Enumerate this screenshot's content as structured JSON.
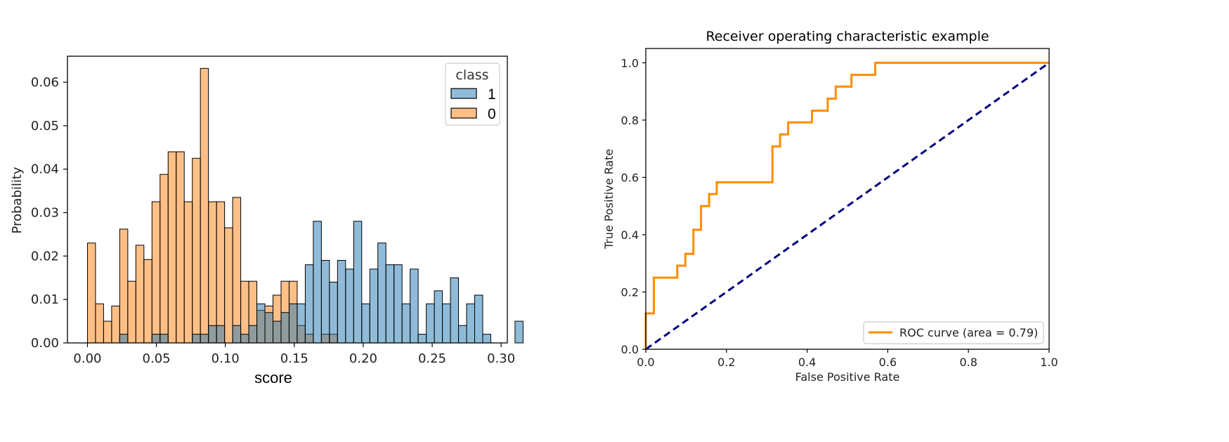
{
  "chart_data": [
    {
      "type": "bar",
      "xlabel": "score",
      "ylabel": "Probability",
      "xlim": [
        -0.0145,
        0.3045
      ],
      "ylim": [
        0,
        0.066
      ],
      "bin_width": 0.00585,
      "x_ticks": [
        "0.00",
        "0.05",
        "0.10",
        "0.15",
        "0.20",
        "0.25",
        "0.30"
      ],
      "x_tick_values": [
        0,
        0.05,
        0.1,
        0.15,
        0.2,
        0.25,
        0.3
      ],
      "y_ticks": [
        "0.00",
        "0.01",
        "0.02",
        "0.03",
        "0.04",
        "0.05",
        "0.06"
      ],
      "y_tick_values": [
        0,
        0.01,
        0.02,
        0.03,
        0.04,
        0.05,
        0.06
      ],
      "legend": {
        "title": "class",
        "placement": "top-right",
        "entries": [
          "1",
          "0"
        ]
      },
      "series": [
        {
          "name": "1",
          "color": "#1f77b4",
          "values": [
            0,
            0,
            0,
            0,
            0.002,
            0,
            0,
            0,
            0.002,
            0.002,
            0,
            0,
            0,
            0.002,
            0.002,
            0.004,
            0.004,
            0,
            0.004,
            0.002,
            0.004,
            0.009,
            0.007,
            0.005,
            0.007,
            0.009,
            0.009,
            0.018,
            0.028,
            0.019,
            0.014,
            0.019,
            0.017,
            0.028,
            0.009,
            0.017,
            0.023,
            0.018,
            0.018,
            0.009,
            0.017,
            0.002,
            0.009,
            0.012,
            0.009,
            0.015,
            0.004,
            0.009,
            0.011,
            0.002,
            0,
            0,
            0,
            0.005,
            0,
            0,
            0,
            0,
            0,
            0
          ]
        },
        {
          "name": "0",
          "color": "#ff7f0e",
          "values": [
            0.023,
            0.009,
            0.005,
            0.0085,
            0.0262,
            0.0142,
            0.0225,
            0.0192,
            0.0325,
            0.0388,
            0.044,
            0.044,
            0.0325,
            0.0425,
            0.0632,
            0.0325,
            0.0325,
            0.0265,
            0.0335,
            0.0142,
            0.0142,
            0.0075,
            0.0085,
            0.011,
            0.0142,
            0.0142,
            0.004,
            0.002,
            0,
            0.002,
            0.002,
            0,
            0,
            0,
            0,
            0,
            0,
            0,
            0,
            0,
            0,
            0,
            0,
            0,
            0,
            0,
            0,
            0,
            0,
            0,
            0,
            0,
            0,
            0,
            0,
            0,
            0,
            0,
            0,
            0
          ]
        }
      ]
    },
    {
      "type": "line",
      "title": "Receiver operating characteristic example",
      "xlabel": "False Positive Rate",
      "ylabel": "True Positive Rate",
      "xlim": [
        0,
        1
      ],
      "ylim": [
        0,
        1.05
      ],
      "x_ticks": [
        "0.0",
        "0.2",
        "0.4",
        "0.6",
        "0.8",
        "1.0"
      ],
      "x_tick_values": [
        0,
        0.2,
        0.4,
        0.6,
        0.8,
        1.0
      ],
      "y_ticks": [
        "0.0",
        "0.2",
        "0.4",
        "0.6",
        "0.8",
        "1.0"
      ],
      "y_tick_values": [
        0,
        0.2,
        0.4,
        0.6,
        0.8,
        1.0
      ],
      "legend": {
        "placement": "lower-right",
        "entries": [
          "ROC curve (area = 0.79)"
        ]
      },
      "series": [
        {
          "name": "ROC curve (area = 0.79)",
          "color": "#ff8c00",
          "style": "step",
          "x": [
            0,
            0,
            0.02,
            0.02,
            0.078,
            0.078,
            0.098,
            0.098,
            0.118,
            0.118,
            0.137,
            0.137,
            0.157,
            0.157,
            0.176,
            0.176,
            0.314,
            0.314,
            0.333,
            0.333,
            0.353,
            0.353,
            0.412,
            0.412,
            0.451,
            0.451,
            0.471,
            0.471,
            0.51,
            0.51,
            0.569,
            0.569,
            1.0
          ],
          "y": [
            0,
            0.125,
            0.125,
            0.25,
            0.25,
            0.292,
            0.292,
            0.333,
            0.333,
            0.417,
            0.417,
            0.5,
            0.5,
            0.542,
            0.542,
            0.583,
            0.583,
            0.708,
            0.708,
            0.75,
            0.75,
            0.792,
            0.792,
            0.833,
            0.833,
            0.875,
            0.875,
            0.917,
            0.917,
            0.958,
            0.958,
            1.0,
            1.0
          ]
        },
        {
          "name": "",
          "color": "#000080",
          "style": "dashed",
          "x": [
            0,
            1
          ],
          "y": [
            0,
            1
          ]
        }
      ]
    }
  ]
}
